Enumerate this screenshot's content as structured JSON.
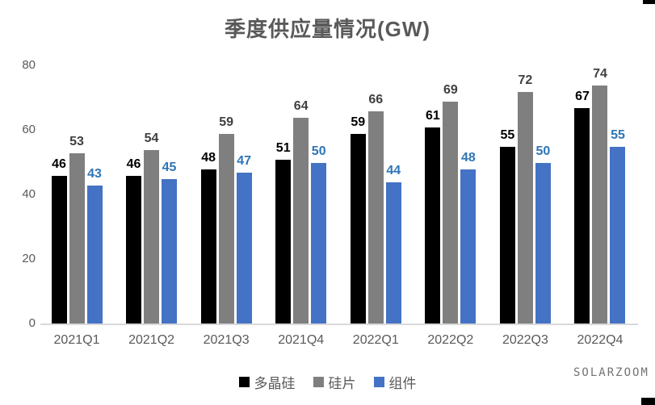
{
  "chart_data": {
    "type": "bar",
    "title": "季度供应量情况(GW)",
    "categories": [
      "2021Q1",
      "2021Q2",
      "2021Q3",
      "2021Q4",
      "2022Q1",
      "2022Q2",
      "2022Q3",
      "2022Q4"
    ],
    "series": [
      {
        "key": "polysilicon",
        "name": "多晶硅",
        "color": "#000000",
        "label_color": "#000000",
        "values": [
          46,
          46,
          48,
          51,
          59,
          61,
          55,
          67
        ]
      },
      {
        "key": "wafer",
        "name": "硅片",
        "color": "#7F7F7F",
        "label_color": "#404040",
        "values": [
          53,
          54,
          59,
          64,
          66,
          69,
          72,
          74
        ]
      },
      {
        "key": "module",
        "name": "组件",
        "color": "#4472C4",
        "label_color": "#2E75B6",
        "values": [
          43,
          45,
          47,
          50,
          44,
          48,
          50,
          55
        ]
      }
    ],
    "xlabel": "",
    "ylabel": "",
    "ylim": [
      0,
      80
    ],
    "yticks": [
      0,
      20,
      40,
      60,
      80
    ],
    "grid": false,
    "legend_position": "bottom",
    "axis_line_color": "#D9D9D9",
    "tick_label_color": "#595959"
  },
  "watermark": "SOLARZOOM"
}
